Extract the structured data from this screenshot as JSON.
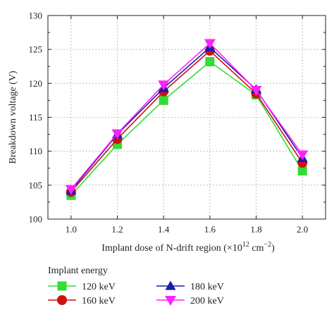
{
  "chart_data": {
    "type": "line",
    "xlabel_main": "Implant dose of N-drift region (×10",
    "xlabel_exp": "12",
    "xlabel_unit": " cm",
    "xlabel_unit_exp": "−2",
    "xlabel_close": ")",
    "ylabel": "Breakdown voltage (V)",
    "x": [
      1.0,
      1.2,
      1.4,
      1.6,
      1.8,
      2.0
    ],
    "x_tick_labels": [
      "1.0",
      "1.2",
      "1.4",
      "1.6",
      "1.8",
      "2.0"
    ],
    "xlim": [
      0.9,
      2.1
    ],
    "ylim": [
      100,
      130
    ],
    "y_ticks": [
      100,
      105,
      110,
      115,
      120,
      125,
      130
    ],
    "grid": true,
    "legend_title": "Implant energy",
    "legend_position": "below",
    "series": [
      {
        "name": "120 keV",
        "values": [
          103.5,
          111.0,
          117.5,
          123.2,
          118.3,
          107.1
        ],
        "color": "#33dd33",
        "marker": "square"
      },
      {
        "name": "160 keV",
        "values": [
          104.0,
          111.8,
          118.8,
          124.8,
          118.5,
          108.3
        ],
        "color": "#cc1111",
        "marker": "circle"
      },
      {
        "name": "180 keV",
        "values": [
          104.2,
          112.5,
          119.3,
          125.3,
          119.1,
          109.0
        ],
        "color": "#1a1aaa",
        "marker": "triangle-up"
      },
      {
        "name": "200 keV",
        "values": [
          104.4,
          112.6,
          119.8,
          125.9,
          119.0,
          109.5
        ],
        "color": "#ff22ff",
        "marker": "triangle-down"
      }
    ]
  }
}
